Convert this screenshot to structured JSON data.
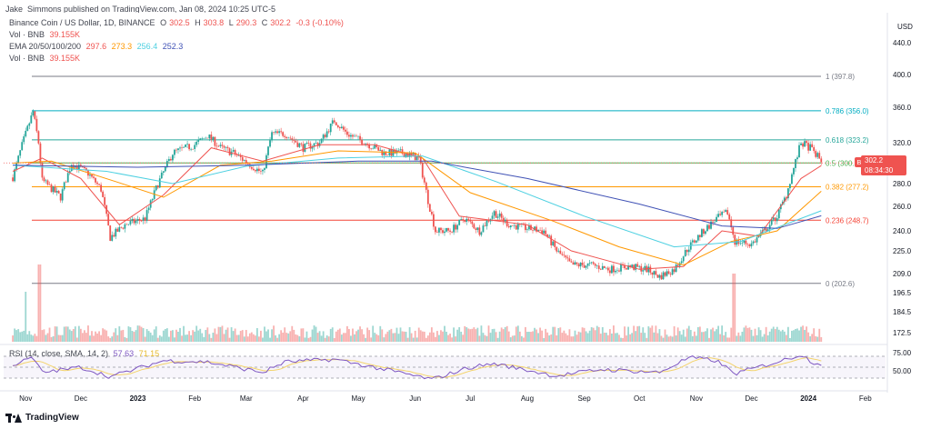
{
  "header": {
    "published": "Jake_Simmons published on TradingView.com, Jan 08, 2024 10:25 UTC-5"
  },
  "legend": {
    "symbol": "Binance Coin / US Dollar, 1D, BINANCE",
    "o_label": "O",
    "o": "302.5",
    "h_label": "H",
    "h": "303.8",
    "l_label": "L",
    "l": "290.3",
    "c_label": "C",
    "c": "302.2",
    "change": "-0.3 (-0.10%)",
    "vol1_label": "Vol · BNB",
    "vol1": "39.155K",
    "ema_label": "EMA 20/50/100/200",
    "ema20": "297.6",
    "ema50": "273.3",
    "ema100": "256.4",
    "ema200": "252.3",
    "vol2_label": "Vol · BNB",
    "vol2": "39.155K",
    "rsi_label": "RSI (14, close, SMA, 14, 2)",
    "rsi": "57.63",
    "rsi_ma": "71.15"
  },
  "currency": "USD",
  "price_badge": {
    "symbol": "BNBUSD",
    "price": "302.2",
    "countdown": "08:34:30"
  },
  "footer": {
    "brand": "TradingView"
  },
  "colors": {
    "up": "#26a69a",
    "down": "#ef5350",
    "ema20": "#ef5350",
    "ema50": "#ff9800",
    "ema100": "#4dd0e1",
    "ema200": "#3f51b5",
    "rsi": "#7e57c2",
    "rsi_ma": "#f3d36b"
  },
  "chart_data": {
    "type": "candlestick",
    "title": "Binance Coin / US Dollar, 1D, BINANCE",
    "y_axis_ticks": [
      440.0,
      400.0,
      360.0,
      320.0,
      280.0,
      260.0,
      240.0,
      225.0,
      209.0,
      196.5,
      184.5,
      172.5
    ],
    "x_axis_labels": [
      "Nov",
      "Dec",
      "2023",
      "Feb",
      "Mar",
      "Apr",
      "May",
      "Jun",
      "Jul",
      "Aug",
      "Sep",
      "Oct",
      "Nov",
      "Dec",
      "2024",
      "Feb"
    ],
    "fibonacci": [
      {
        "ratio": "1",
        "value": 397.8,
        "label": "1 (397.8)",
        "color": "#787b86"
      },
      {
        "ratio": "0.786",
        "value": 356.0,
        "label": "0.786 (356.0)",
        "color": "#00acc1"
      },
      {
        "ratio": "0.618",
        "value": 323.2,
        "label": "0.618 (323.2)",
        "color": "#26a69a"
      },
      {
        "ratio": "0.5",
        "value": 300.2,
        "label": "0.5 (300.2)",
        "color": "#4caf50"
      },
      {
        "ratio": "0.382",
        "value": 277.2,
        "label": "0.382 (277.2)",
        "color": "#ff9800"
      },
      {
        "ratio": "0.236",
        "value": 248.7,
        "label": "0.236 (248.7)",
        "color": "#f44336"
      },
      {
        "ratio": "0",
        "value": 202.6,
        "label": "0 (202.6)",
        "color": "#787b86"
      }
    ],
    "price_path": [
      [
        "2022-10-25",
        286
      ],
      [
        "2022-11-01",
        330
      ],
      [
        "2022-11-05",
        355
      ],
      [
        "2022-11-08",
        320
      ],
      [
        "2022-11-10",
        283
      ],
      [
        "2022-11-20",
        268
      ],
      [
        "2022-11-26",
        300
      ],
      [
        "2022-12-05",
        290
      ],
      [
        "2022-12-12",
        275
      ],
      [
        "2022-12-17",
        235
      ],
      [
        "2022-12-25",
        245
      ],
      [
        "2023-01-05",
        250
      ],
      [
        "2023-01-12",
        280
      ],
      [
        "2023-01-20",
        310
      ],
      [
        "2023-02-01",
        318
      ],
      [
        "2023-02-08",
        328
      ],
      [
        "2023-02-15",
        315
      ],
      [
        "2023-02-22",
        310
      ],
      [
        "2023-03-02",
        300
      ],
      [
        "2023-03-10",
        290
      ],
      [
        "2023-03-15",
        330
      ],
      [
        "2023-03-22",
        330
      ],
      [
        "2023-04-01",
        315
      ],
      [
        "2023-04-10",
        320
      ],
      [
        "2023-04-18",
        345
      ],
      [
        "2023-04-25",
        330
      ],
      [
        "2023-05-05",
        320
      ],
      [
        "2023-05-15",
        310
      ],
      [
        "2023-05-25",
        310
      ],
      [
        "2023-06-03",
        305
      ],
      [
        "2023-06-08",
        265
      ],
      [
        "2023-06-12",
        240
      ],
      [
        "2023-06-20",
        240
      ],
      [
        "2023-06-28",
        250
      ],
      [
        "2023-07-06",
        240
      ],
      [
        "2023-07-14",
        255
      ],
      [
        "2023-07-22",
        245
      ],
      [
        "2023-08-01",
        242
      ],
      [
        "2023-08-10",
        240
      ],
      [
        "2023-08-17",
        225
      ],
      [
        "2023-08-25",
        215
      ],
      [
        "2023-09-05",
        215
      ],
      [
        "2023-09-15",
        212
      ],
      [
        "2023-09-25",
        214
      ],
      [
        "2023-10-05",
        212
      ],
      [
        "2023-10-12",
        207
      ],
      [
        "2023-10-20",
        212
      ],
      [
        "2023-10-28",
        228
      ],
      [
        "2023-11-05",
        240
      ],
      [
        "2023-11-12",
        250
      ],
      [
        "2023-11-18",
        255
      ],
      [
        "2023-11-22",
        232
      ],
      [
        "2023-12-01",
        230
      ],
      [
        "2023-12-08",
        240
      ],
      [
        "2023-12-15",
        252
      ],
      [
        "2023-12-20",
        270
      ],
      [
        "2023-12-28",
        320
      ],
      [
        "2024-01-02",
        315
      ],
      [
        "2024-01-08",
        302.2
      ]
    ],
    "ema": {
      "ema20": [
        [
          "2022-10-25",
          292
        ],
        [
          "2022-11-10",
          305
        ],
        [
          "2022-12-01",
          285
        ],
        [
          "2022-12-22",
          245
        ],
        [
          "2023-01-15",
          270
        ],
        [
          "2023-02-10",
          315
        ],
        [
          "2023-03-10",
          302
        ],
        [
          "2023-04-10",
          318
        ],
        [
          "2023-05-10",
          318
        ],
        [
          "2023-06-05",
          305
        ],
        [
          "2023-06-25",
          252
        ],
        [
          "2023-08-01",
          245
        ],
        [
          "2023-08-25",
          225
        ],
        [
          "2023-10-01",
          212
        ],
        [
          "2023-10-25",
          214
        ],
        [
          "2023-11-15",
          240
        ],
        [
          "2023-12-05",
          236
        ],
        [
          "2023-12-28",
          285
        ],
        [
          "2024-01-08",
          297.6
        ]
      ],
      "ema50": [
        [
          "2022-10-25",
          300
        ],
        [
          "2022-11-15",
          302
        ],
        [
          "2022-12-20",
          282
        ],
        [
          "2023-01-15",
          268
        ],
        [
          "2023-02-15",
          298
        ],
        [
          "2023-03-15",
          302
        ],
        [
          "2023-04-20",
          312
        ],
        [
          "2023-06-01",
          310
        ],
        [
          "2023-07-01",
          272
        ],
        [
          "2023-08-15",
          248
        ],
        [
          "2023-09-20",
          228
        ],
        [
          "2023-10-25",
          215
        ],
        [
          "2023-11-20",
          232
        ],
        [
          "2023-12-15",
          240
        ],
        [
          "2024-01-08",
          273.3
        ]
      ],
      "ema100": [
        [
          "2022-10-25",
          298
        ],
        [
          "2022-12-15",
          292
        ],
        [
          "2023-01-20",
          280
        ],
        [
          "2023-03-01",
          297
        ],
        [
          "2023-04-20",
          305
        ],
        [
          "2023-06-05",
          307
        ],
        [
          "2023-07-15",
          282
        ],
        [
          "2023-09-01",
          252
        ],
        [
          "2023-10-20",
          228
        ],
        [
          "2023-11-25",
          232
        ],
        [
          "2024-01-08",
          256.4
        ]
      ],
      "ema200": [
        [
          "2022-10-25",
          298
        ],
        [
          "2023-01-01",
          296
        ],
        [
          "2023-03-01",
          298
        ],
        [
          "2023-05-01",
          302
        ],
        [
          "2023-06-10",
          302
        ],
        [
          "2023-08-01",
          285
        ],
        [
          "2023-10-01",
          262
        ],
        [
          "2023-11-15",
          244
        ],
        [
          "2023-12-15",
          242
        ],
        [
          "2024-01-08",
          252.3
        ]
      ]
    },
    "rsi_levels": [
      75.0,
      50.0
    ],
    "rsi_path": [
      [
        "2022-10-25",
        55
      ],
      [
        "2022-11-05",
        72
      ],
      [
        "2022-11-10",
        38
      ],
      [
        "2022-12-01",
        50
      ],
      [
        "2022-12-17",
        28
      ],
      [
        "2023-01-15",
        65
      ],
      [
        "2023-02-08",
        62
      ],
      [
        "2023-03-10",
        38
      ],
      [
        "2023-03-22",
        62
      ],
      [
        "2023-04-18",
        68
      ],
      [
        "2023-05-15",
        45
      ],
      [
        "2023-06-10",
        22
      ],
      [
        "2023-07-01",
        50
      ],
      [
        "2023-07-14",
        58
      ],
      [
        "2023-08-17",
        30
      ],
      [
        "2023-09-10",
        45
      ],
      [
        "2023-10-12",
        38
      ],
      [
        "2023-10-28",
        72
      ],
      [
        "2023-11-12",
        65
      ],
      [
        "2023-11-22",
        35
      ],
      [
        "2023-12-20",
        68
      ],
      [
        "2023-12-28",
        80
      ],
      [
        "2024-01-03",
        62
      ],
      [
        "2024-01-08",
        57.63
      ]
    ],
    "y_range": [
      160,
      450
    ],
    "grid": true
  }
}
